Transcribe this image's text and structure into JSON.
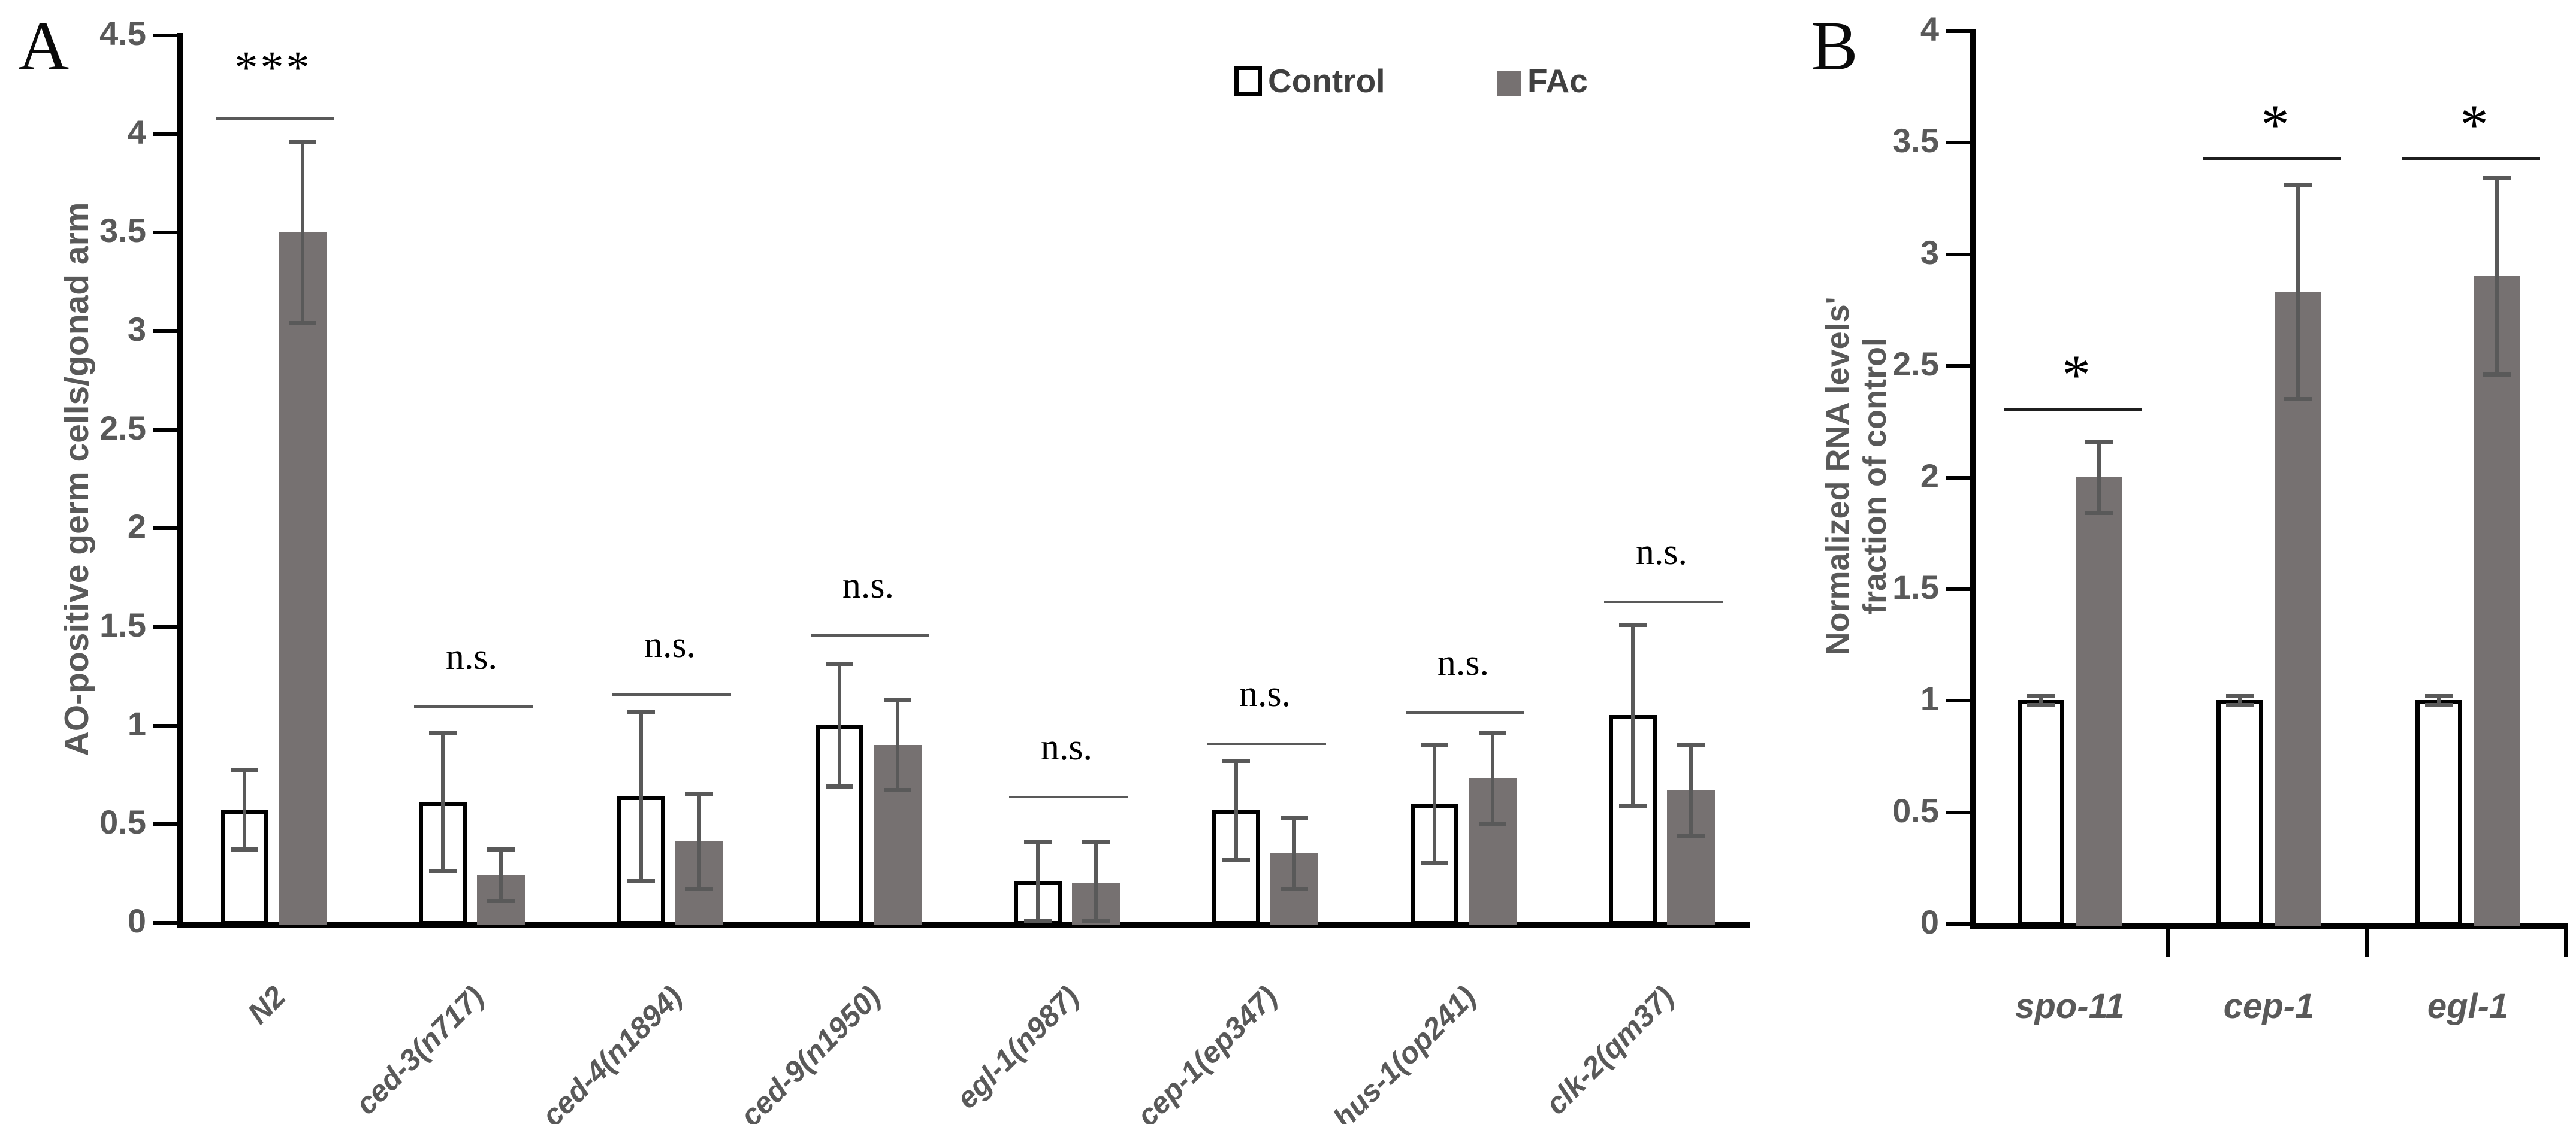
{
  "figure": {
    "panels": [
      {
        "letter": "A"
      },
      {
        "letter": "B"
      }
    ],
    "legend": [
      {
        "label": "Control",
        "fill": "#ffffff",
        "border": "#000000"
      },
      {
        "label": "FAc",
        "fill": "#767171",
        "border": ""
      }
    ],
    "colors": {
      "fac_bar": "#767171",
      "control_bar_fill": "#ffffff",
      "control_bar_border": "#000000",
      "error_bar": "#595959",
      "axis": "#000000",
      "tick_text": "#595959",
      "sig_line_a": "#595959",
      "sig_line_b": "#1f1f1f",
      "sig_text": "#000000"
    }
  },
  "chart_data": [
    {
      "type": "bar",
      "panel": "A",
      "title": "",
      "xlabel": "",
      "ylabel": "AO-positive germ cells/gonad arm",
      "ylabel_lines": [
        "AO-positive germ cells/gonad arm"
      ],
      "ylim": [
        0,
        4.5
      ],
      "ytick_step": 0.5,
      "ytick_labels": [
        "0",
        "0.5",
        "1",
        "1.5",
        "2",
        "2.5",
        "3",
        "3.5",
        "4",
        "4.5"
      ],
      "grid": false,
      "legend_position": "top-right",
      "categories": [
        "N2",
        "ced-3(n717)",
        "ced-4(n1894)",
        "ced-9(n1950)",
        "egl-1(n987)",
        "cep-1(ep347)",
        "hus-1(op241)",
        "clk-2(qm37)"
      ],
      "series": [
        {
          "name": "Control",
          "values": [
            0.57,
            0.61,
            0.64,
            1.0,
            0.21,
            0.57,
            0.6,
            1.05
          ],
          "errors": [
            0.2,
            0.35,
            0.43,
            0.31,
            0.2,
            0.25,
            0.3,
            0.46
          ]
        },
        {
          "name": "FAc",
          "values": [
            3.5,
            0.24,
            0.41,
            0.9,
            0.2,
            0.35,
            0.73,
            0.67
          ],
          "errors": [
            0.46,
            0.13,
            0.24,
            0.23,
            0.21,
            0.18,
            0.23,
            0.23
          ]
        }
      ],
      "significance": [
        {
          "label": "***",
          "line_y": 4.08
        },
        {
          "label": "n.s.",
          "line_y": 1.1
        },
        {
          "label": "n.s.",
          "line_y": 1.16
        },
        {
          "label": "n.s.",
          "line_y": 1.46
        },
        {
          "label": "n.s.",
          "line_y": 0.64
        },
        {
          "label": "n.s.",
          "line_y": 0.91
        },
        {
          "label": "n.s.",
          "line_y": 1.07
        },
        {
          "label": "n.s.",
          "line_y": 1.63
        }
      ]
    },
    {
      "type": "bar",
      "panel": "B",
      "title": "",
      "xlabel": "",
      "ylabel": "Normalized RNA levels' fraction of control",
      "ylabel_lines": [
        "Normalized RNA levels'",
        "fraction of control"
      ],
      "ylim": [
        0,
        4
      ],
      "ytick_step": 0.5,
      "ytick_labels": [
        "0",
        "0.5",
        "1",
        "1.5",
        "2",
        "2.5",
        "3",
        "3.5",
        "4"
      ],
      "grid": false,
      "categories": [
        "spo-11",
        "cep-1",
        "egl-1"
      ],
      "series": [
        {
          "name": "Control",
          "values": [
            1.0,
            1.0,
            1.0
          ],
          "errors": [
            0.02,
            0.02,
            0.02
          ]
        },
        {
          "name": "FAc",
          "values": [
            2.0,
            2.83,
            2.9
          ],
          "errors": [
            0.16,
            0.48,
            0.44
          ]
        }
      ],
      "significance": [
        {
          "label": "*",
          "line_y": 2.31
        },
        {
          "label": "*",
          "line_y": 3.43
        },
        {
          "label": "*",
          "line_y": 3.43
        }
      ]
    }
  ]
}
